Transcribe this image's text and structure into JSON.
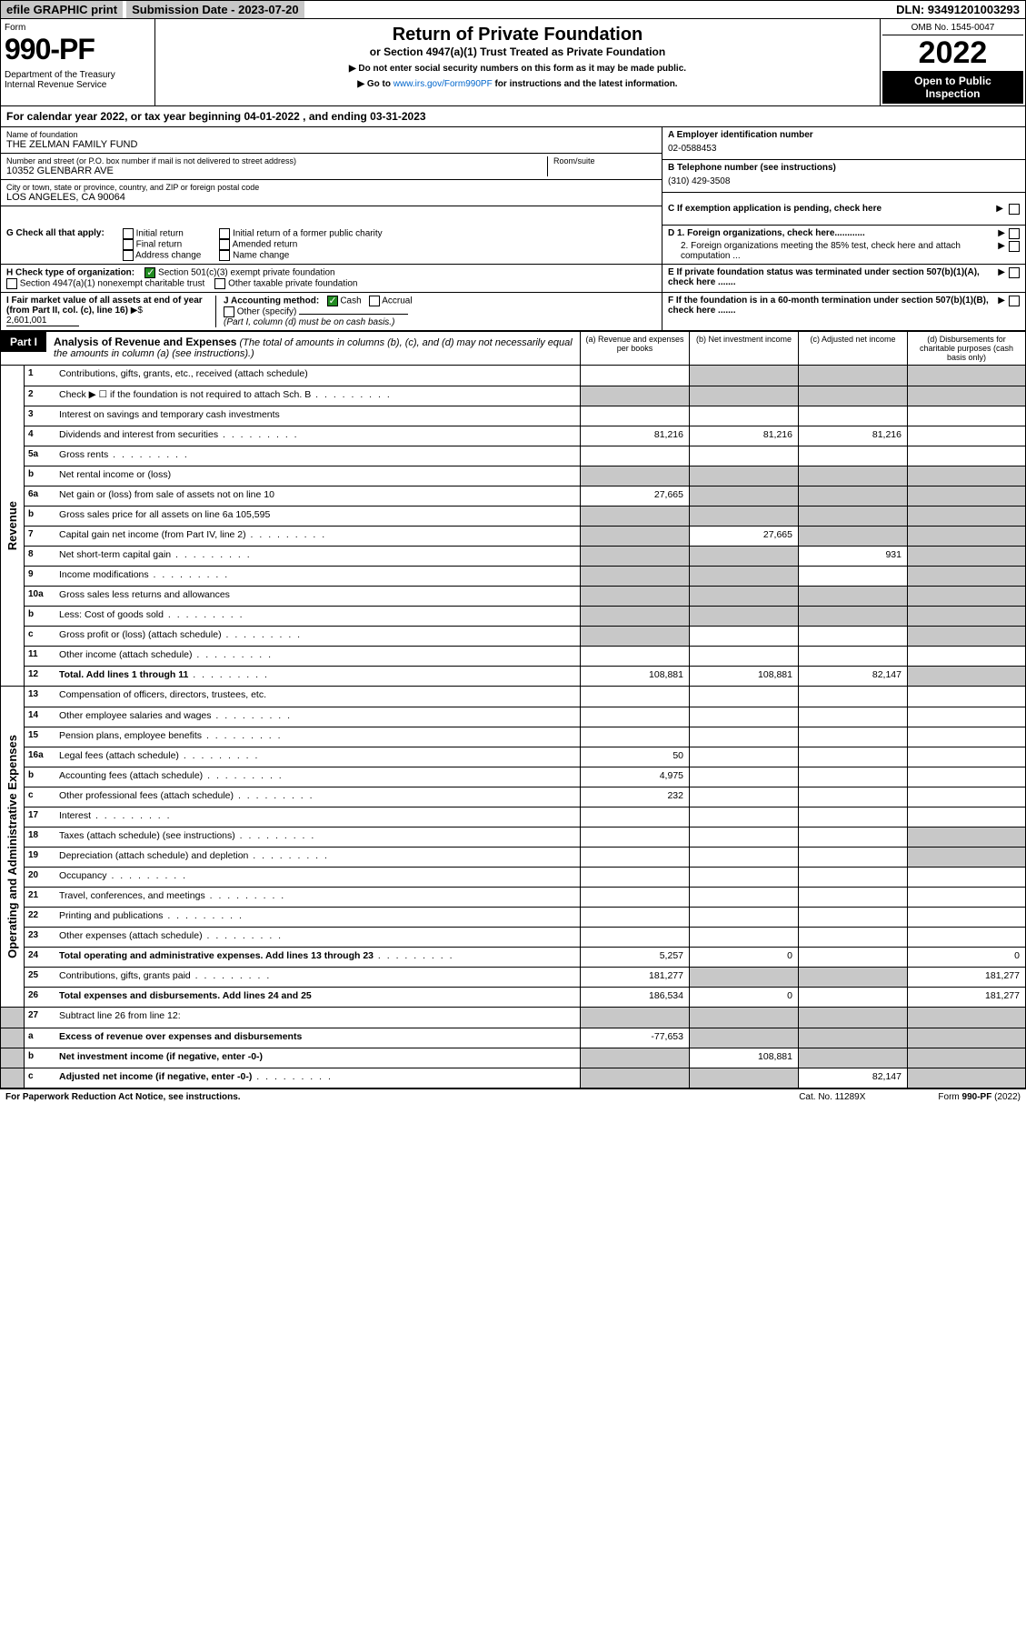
{
  "topbar": {
    "efile": "efile GRAPHIC print",
    "submission": "Submission Date - 2023-07-20",
    "dln": "DLN: 93491201003293"
  },
  "header": {
    "form_label": "Form",
    "form_number": "990-PF",
    "dept": "Department of the Treasury\nInternal Revenue Service",
    "title": "Return of Private Foundation",
    "subtitle": "or Section 4947(a)(1) Trust Treated as Private Foundation",
    "note1": "▶ Do not enter social security numbers on this form as it may be made public.",
    "note2_prefix": "▶ Go to ",
    "note2_link": "www.irs.gov/Form990PF",
    "note2_suffix": " for instructions and the latest information.",
    "omb": "OMB No. 1545-0047",
    "year": "2022",
    "open": "Open to Public Inspection"
  },
  "calyear": "For calendar year 2022, or tax year beginning 04-01-2022                           , and ending 03-31-2023",
  "foundation": {
    "name_lbl": "Name of foundation",
    "name": "THE ZELMAN FAMILY FUND",
    "addr_lbl": "Number and street (or P.O. box number if mail is not delivered to street address)",
    "addr": "10352 GLENBARR AVE",
    "room_lbl": "Room/suite",
    "city_lbl": "City or town, state or province, country, and ZIP or foreign postal code",
    "city": "LOS ANGELES, CA  90064"
  },
  "right_info": {
    "a_lbl": "A Employer identification number",
    "a_val": "02-0588453",
    "b_lbl": "B Telephone number (see instructions)",
    "b_val": "(310) 429-3508",
    "c_lbl": "C If exemption application is pending, check here",
    "d1": "D 1. Foreign organizations, check here............",
    "d2": "2. Foreign organizations meeting the 85% test, check here and attach computation ...",
    "e": "E If private foundation status was terminated under section 507(b)(1)(A), check here .......",
    "f": "F If the foundation is in a 60-month termination under section 507(b)(1)(B), check here ......."
  },
  "g": {
    "label": "G Check all that apply:",
    "opts": [
      "Initial return",
      "Final return",
      "Address change",
      "Initial return of a former public charity",
      "Amended return",
      "Name change"
    ]
  },
  "h": {
    "label": "H Check type of organization:",
    "opt1": "Section 501(c)(3) exempt private foundation",
    "opt2": "Section 4947(a)(1) nonexempt charitable trust",
    "opt3": "Other taxable private foundation"
  },
  "i": {
    "label": "I Fair market value of all assets at end of year (from Part II, col. (c), line 16)",
    "val": "2,601,001"
  },
  "j": {
    "label": "J Accounting method:",
    "cash": "Cash",
    "accrual": "Accrual",
    "other": "Other (specify)",
    "note": "(Part I, column (d) must be on cash basis.)"
  },
  "part1": {
    "label": "Part I",
    "title": "Analysis of Revenue and Expenses",
    "note": "(The total of amounts in columns (b), (c), and (d) may not necessarily equal the amounts in column (a) (see instructions).)",
    "cols": {
      "a": "(a) Revenue and expenses per books",
      "b": "(b) Net investment income",
      "c": "(c) Adjusted net income",
      "d": "(d) Disbursements for charitable purposes (cash basis only)"
    }
  },
  "cats": {
    "revenue": "Revenue",
    "expenses": "Operating and Administrative Expenses"
  },
  "lines": [
    {
      "n": "1",
      "d": "Contributions, gifts, grants, etc., received (attach schedule)",
      "a": "",
      "b": "s",
      "c": "s",
      "e": "s"
    },
    {
      "n": "2",
      "d": "Check ▶ ☐ if the foundation is not required to attach Sch. B",
      "dots": true,
      "a": "s",
      "b": "s",
      "c": "s",
      "e": "s"
    },
    {
      "n": "3",
      "d": "Interest on savings and temporary cash investments"
    },
    {
      "n": "4",
      "d": "Dividends and interest from securities",
      "dots": true,
      "a": "81,216",
      "b": "81,216",
      "c": "81,216"
    },
    {
      "n": "5a",
      "d": "Gross rents",
      "dots": true
    },
    {
      "n": "b",
      "d": "Net rental income or (loss)",
      "a": "s",
      "b": "s",
      "c": "s",
      "e": "s"
    },
    {
      "n": "6a",
      "d": "Net gain or (loss) from sale of assets not on line 10",
      "a": "27,665",
      "b": "s",
      "c": "s",
      "e": "s"
    },
    {
      "n": "b",
      "d": "Gross sales price for all assets on line 6a               105,595",
      "a": "s",
      "b": "s",
      "c": "s",
      "e": "s"
    },
    {
      "n": "7",
      "d": "Capital gain net income (from Part IV, line 2)",
      "dots": true,
      "a": "s",
      "b": "27,665",
      "c": "s",
      "e": "s"
    },
    {
      "n": "8",
      "d": "Net short-term capital gain",
      "dots": true,
      "a": "s",
      "b": "s",
      "c": "931",
      "e": "s"
    },
    {
      "n": "9",
      "d": "Income modifications",
      "dots": true,
      "a": "s",
      "b": "s",
      "e": "s"
    },
    {
      "n": "10a",
      "d": "Gross sales less returns and allowances",
      "a": "s",
      "b": "s",
      "c": "s",
      "e": "s"
    },
    {
      "n": "b",
      "d": "Less: Cost of goods sold",
      "dots": true,
      "a": "s",
      "b": "s",
      "c": "s",
      "e": "s"
    },
    {
      "n": "c",
      "d": "Gross profit or (loss) (attach schedule)",
      "dots": true,
      "a": "s",
      "e": "s"
    },
    {
      "n": "11",
      "d": "Other income (attach schedule)",
      "dots": true
    },
    {
      "n": "12",
      "d": "Total. Add lines 1 through 11",
      "dots": true,
      "bold": true,
      "a": "108,881",
      "b": "108,881",
      "c": "82,147",
      "e": "s"
    }
  ],
  "exp_lines": [
    {
      "n": "13",
      "d": "Compensation of officers, directors, trustees, etc."
    },
    {
      "n": "14",
      "d": "Other employee salaries and wages",
      "dots": true
    },
    {
      "n": "15",
      "d": "Pension plans, employee benefits",
      "dots": true
    },
    {
      "n": "16a",
      "d": "Legal fees (attach schedule)",
      "dots": true,
      "a": "50"
    },
    {
      "n": "b",
      "d": "Accounting fees (attach schedule)",
      "dots": true,
      "a": "4,975"
    },
    {
      "n": "c",
      "d": "Other professional fees (attach schedule)",
      "dots": true,
      "a": "232"
    },
    {
      "n": "17",
      "d": "Interest",
      "dots": true
    },
    {
      "n": "18",
      "d": "Taxes (attach schedule) (see instructions)",
      "dots": true,
      "e": "s"
    },
    {
      "n": "19",
      "d": "Depreciation (attach schedule) and depletion",
      "dots": true,
      "e": "s"
    },
    {
      "n": "20",
      "d": "Occupancy",
      "dots": true
    },
    {
      "n": "21",
      "d": "Travel, conferences, and meetings",
      "dots": true
    },
    {
      "n": "22",
      "d": "Printing and publications",
      "dots": true
    },
    {
      "n": "23",
      "d": "Other expenses (attach schedule)",
      "dots": true
    },
    {
      "n": "24",
      "d": "Total operating and administrative expenses. Add lines 13 through 23",
      "dots": true,
      "bold": true,
      "a": "5,257",
      "b": "0",
      "c": "",
      "e": "0"
    },
    {
      "n": "25",
      "d": "Contributions, gifts, grants paid",
      "dots": true,
      "a": "181,277",
      "b": "s",
      "c": "s",
      "e": "181,277"
    },
    {
      "n": "26",
      "d": "Total expenses and disbursements. Add lines 24 and 25",
      "bold": true,
      "a": "186,534",
      "b": "0",
      "c": "",
      "e": "181,277"
    }
  ],
  "net_lines": [
    {
      "n": "27",
      "d": "Subtract line 26 from line 12:",
      "a": "s",
      "b": "s",
      "c": "s",
      "e": "s"
    },
    {
      "n": "a",
      "d": "Excess of revenue over expenses and disbursements",
      "bold": true,
      "a": "-77,653",
      "b": "s",
      "c": "s",
      "e": "s"
    },
    {
      "n": "b",
      "d": "Net investment income (if negative, enter -0-)",
      "bold": true,
      "a": "s",
      "b": "108,881",
      "c": "s",
      "e": "s"
    },
    {
      "n": "c",
      "d": "Adjusted net income (if negative, enter -0-)",
      "bold": true,
      "dots": true,
      "a": "s",
      "b": "s",
      "c": "82,147",
      "e": "s"
    }
  ],
  "footer": {
    "left": "For Paperwork Reduction Act Notice, see instructions.",
    "mid": "Cat. No. 11289X",
    "right": "Form 990-PF (2022)"
  }
}
